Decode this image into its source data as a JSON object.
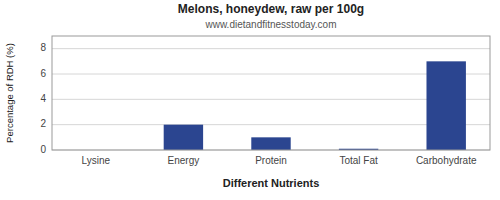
{
  "chart_data": {
    "type": "bar",
    "title": "Melons, honeydew, raw per 100g",
    "subtitle": "www.dietandfitnesstoday.com",
    "xlabel": "Different Nutrients",
    "ylabel": "Percentage of RDH (%)",
    "categories": [
      "Lysine",
      "Energy",
      "Protein",
      "Total Fat",
      "Carbohydrate"
    ],
    "values": [
      0.0,
      2.0,
      1.0,
      0.1,
      7.0
    ],
    "color": "#2b4590",
    "ylim": [
      0,
      9
    ],
    "yticks": [
      0,
      2,
      4,
      6,
      8
    ],
    "grid": true
  }
}
